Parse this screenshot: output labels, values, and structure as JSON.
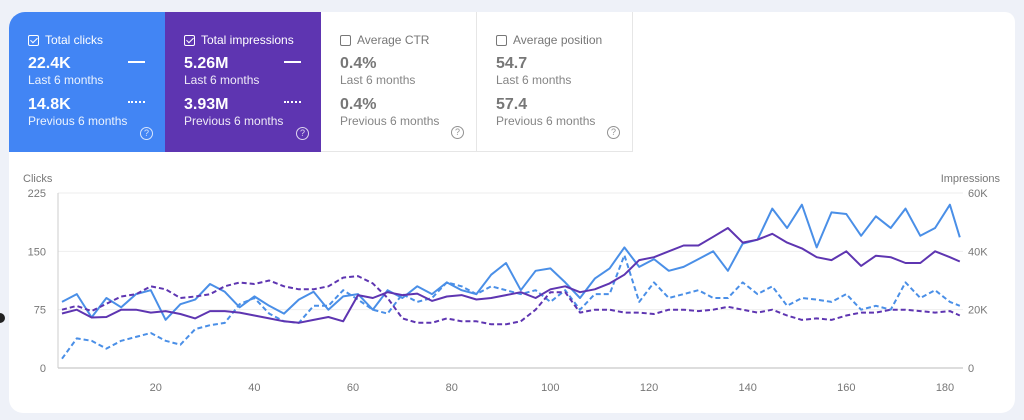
{
  "metrics": [
    {
      "label": "Total clicks",
      "checked": true,
      "value": "22.4K",
      "value_label": "Last 6 months",
      "prev_value": "14.8K",
      "prev_label": "Previous 6 months",
      "color": "#4285f4"
    },
    {
      "label": "Total impressions",
      "checked": true,
      "value": "5.26M",
      "value_label": "Last 6 months",
      "prev_value": "3.93M",
      "prev_label": "Previous 6 months",
      "color": "#5e35b1"
    },
    {
      "label": "Average CTR",
      "checked": false,
      "value": "0.4%",
      "value_label": "Last 6 months",
      "prev_value": "0.4%",
      "prev_label": "Previous 6 months"
    },
    {
      "label": "Average position",
      "checked": false,
      "value": "54.7",
      "value_label": "Last 6 months",
      "prev_value": "57.4",
      "prev_label": "Previous 6 months"
    }
  ],
  "help_glyph": "?",
  "chart_data": {
    "type": "line",
    "ylabel_left": "Clicks",
    "ylabel_right": "Impressions",
    "ylim_left": [
      0,
      225
    ],
    "yticks_left": [
      "0",
      "75",
      "150",
      "225"
    ],
    "ytick_values_left": [
      0,
      75,
      150,
      225
    ],
    "ylim_right": [
      0,
      60
    ],
    "yticks_right": [
      "0",
      "20K",
      "40K",
      "60K"
    ],
    "ytick_values_right": [
      0,
      20,
      40,
      60
    ],
    "xlim": [
      1,
      183
    ],
    "xticks": [
      20,
      40,
      60,
      80,
      100,
      120,
      140,
      160,
      180
    ],
    "grid": true,
    "x": [
      1,
      4,
      7,
      10,
      13,
      16,
      19,
      22,
      25,
      28,
      31,
      34,
      37,
      40,
      43,
      46,
      49,
      52,
      55,
      58,
      61,
      64,
      67,
      70,
      73,
      76,
      79,
      82,
      85,
      88,
      91,
      94,
      97,
      100,
      103,
      106,
      109,
      112,
      115,
      118,
      121,
      124,
      127,
      130,
      133,
      136,
      139,
      142,
      145,
      148,
      151,
      154,
      157,
      160,
      163,
      166,
      169,
      172,
      175,
      178,
      181,
      183
    ],
    "series": [
      {
        "metric": "Total clicks",
        "period": "Last 6 months",
        "axis": "left",
        "color": "#4a8fe7",
        "dashed": false,
        "values": [
          85,
          95,
          65,
          90,
          78,
          95,
          100,
          62,
          82,
          88,
          108,
          98,
          78,
          92,
          80,
          70,
          88,
          98,
          75,
          92,
          95,
          75,
          100,
          90,
          105,
          95,
          110,
          100,
          95,
          120,
          135,
          100,
          125,
          128,
          110,
          90,
          115,
          128,
          155,
          130,
          140,
          125,
          130,
          140,
          150,
          125,
          160,
          165,
          205,
          180,
          210,
          155,
          200,
          198,
          170,
          195,
          180,
          205,
          170,
          180,
          210,
          168
        ]
      },
      {
        "metric": "Total clicks",
        "period": "Previous 6 months",
        "axis": "left",
        "color": "#4a8fe7",
        "dashed": true,
        "values": [
          12,
          38,
          35,
          25,
          35,
          40,
          45,
          35,
          30,
          50,
          55,
          58,
          82,
          90,
          70,
          60,
          58,
          80,
          80,
          100,
          88,
          75,
          70,
          95,
          85,
          90,
          110,
          105,
          95,
          105,
          100,
          95,
          100,
          85,
          100,
          75,
          95,
          95,
          145,
          85,
          110,
          90,
          95,
          100,
          90,
          90,
          110,
          95,
          105,
          80,
          90,
          88,
          85,
          95,
          75,
          80,
          75,
          110,
          90,
          100,
          85,
          80
        ]
      },
      {
        "metric": "Total impressions",
        "period": "Last 6 months",
        "axis": "right",
        "unit": "K",
        "color": "#5e35b1",
        "dashed": false,
        "values": [
          18.7,
          20,
          17.3,
          17.5,
          20,
          20,
          19,
          19.5,
          18.5,
          17,
          19.5,
          19.5,
          19,
          18,
          17,
          16,
          15.5,
          16.5,
          17.5,
          16,
          25,
          24,
          26,
          25,
          25.5,
          23,
          24.5,
          25,
          23.5,
          24,
          25,
          26,
          24,
          27,
          28,
          26,
          27,
          29,
          32,
          37,
          38,
          40,
          42,
          42,
          45,
          48,
          43,
          44,
          46,
          43,
          41,
          38,
          37,
          40,
          35,
          38.5,
          38,
          36,
          36,
          40,
          38,
          36.5
        ]
      },
      {
        "metric": "Total impressions",
        "period": "Previous 6 months",
        "axis": "right",
        "unit": "K",
        "color": "#5e35b1",
        "dashed": true,
        "values": [
          20,
          21.3,
          19.5,
          22,
          24.5,
          25.3,
          28,
          27,
          24,
          24.5,
          25.3,
          28,
          29.3,
          28.8,
          30,
          28,
          27,
          27,
          28,
          31,
          31.5,
          29,
          24,
          17,
          15.5,
          15.5,
          17,
          16,
          16,
          15,
          15,
          16,
          20,
          26,
          26,
          19,
          20,
          20,
          19,
          19,
          18.5,
          20,
          20,
          19.5,
          20,
          21,
          20,
          19,
          20,
          18,
          16.5,
          17,
          16.5,
          18,
          19,
          19,
          20,
          20,
          19.5,
          19,
          19.5,
          18
        ]
      }
    ]
  }
}
